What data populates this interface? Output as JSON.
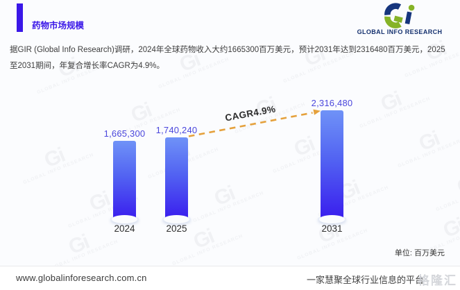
{
  "header": {
    "title": "药物市场规模"
  },
  "logo": {
    "mark": "Gi",
    "name": "GLOBAL INFO RESEARCH"
  },
  "intro": "据GIR (Global Info Research)调研，2024年全球药物收入大约1665300百万美元，预计2031年达到2316480百万美元，2025至2031期间，年复合增长率CAGR为4.9%。",
  "chart_data": {
    "type": "bar",
    "title": "药物市场规模",
    "categories": [
      "2024",
      "2025",
      "2031"
    ],
    "values": [
      1665300,
      1740240,
      2316480
    ],
    "value_labels": [
      "1,665,300",
      "1,740,240",
      "2,316,480"
    ],
    "unit": "单位: 百万美元",
    "annotation": {
      "label": "CAGR4.9%",
      "from": "2025",
      "to": "2031"
    },
    "ylim": [
      0,
      2316480
    ],
    "legend": "none",
    "grid": false,
    "bar_color_top": "#6f92f7",
    "bar_color_bottom": "#3b22ee",
    "value_label_color": "#4a46dc",
    "arrow_color": "#e5a13c"
  },
  "footer": {
    "url": "www.globalinforesearch.com.cn",
    "tagline": "一家慧聚全球行业信息的平台",
    "overlay_watermark": "格隆汇"
  },
  "watermark": {
    "mark": "Gi",
    "text": "GLOBAL INFO RESEARCH"
  }
}
